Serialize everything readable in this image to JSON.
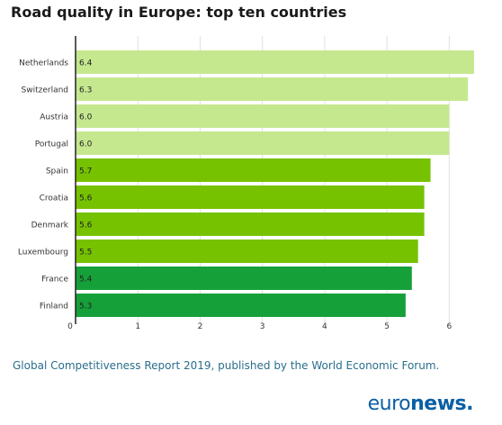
{
  "chart_title": "Road quality in Europe: top ten countries",
  "source_note": "Global Competitiveness Report 2019, published by the World Economic Forum.",
  "logo": {
    "part1": "euro",
    "part2": "news",
    "part3": "."
  },
  "colors": {
    "light_green": "#c5e88f",
    "mid_green": "#76c200",
    "dark_green": "#16a03a",
    "grid": "#e0e0e0",
    "axis": "#222222",
    "label": "#333333",
    "source": "#2a6e8c",
    "logo": "#0a5fa5"
  },
  "chart_data": {
    "type": "bar",
    "orientation": "horizontal",
    "title": "Road quality in Europe: top ten countries",
    "categories": [
      "Netherlands",
      "Switzerland",
      "Austria",
      "Portugal",
      "Spain",
      "Croatia",
      "Denmark",
      "Luxembourg",
      "France",
      "Finland"
    ],
    "values": [
      6.4,
      6.3,
      6.0,
      6.0,
      5.7,
      5.6,
      5.6,
      5.5,
      5.4,
      5.3
    ],
    "value_labels": [
      "6.4",
      "6.3",
      "6.0",
      "6.0",
      "5.7",
      "5.6",
      "5.6",
      "5.5",
      "5.4",
      "5.3"
    ],
    "bar_colors": [
      "#c5e88f",
      "#c5e88f",
      "#c5e88f",
      "#c5e88f",
      "#76c200",
      "#76c200",
      "#76c200",
      "#76c200",
      "#16a03a",
      "#16a03a"
    ],
    "x_ticks": [
      0,
      1,
      2,
      3,
      4,
      5,
      6
    ],
    "xlim": [
      0,
      6.4
    ],
    "grid": true,
    "xlabel": "",
    "ylabel": ""
  }
}
